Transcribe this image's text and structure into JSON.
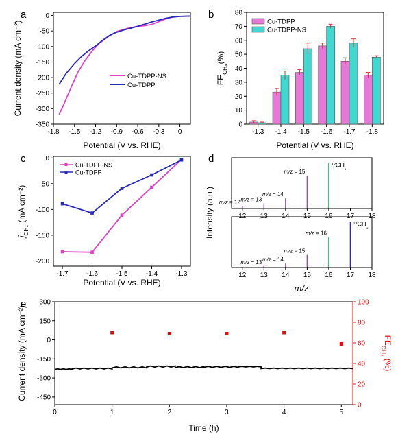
{
  "colors": {
    "magenta": "#e040c8",
    "magenta_fill": "#e878d8",
    "blue": "#2a2ab8",
    "cyan": "#40d8d0",
    "red": "#e01010",
    "green": "#20b070",
    "purple": "#9050c0",
    "errorbar": "#e03030"
  },
  "panel_labels": {
    "a": "a",
    "b": "b",
    "c": "c",
    "d": "d",
    "e": "e"
  },
  "chart_data": [
    {
      "id": "a",
      "type": "line",
      "xlabel": "Potential (V vs. RHE)",
      "ylabel": "Current density (mA cm⁻²)",
      "xlim": [
        -1.8,
        0.15
      ],
      "ylim": [
        -350,
        10
      ],
      "xticks": [
        "-1.8",
        "-1.5",
        "-1.2",
        "-0.9",
        "-0.6",
        "-0.3",
        "0"
      ],
      "yticks": [
        "0",
        "-50",
        "-100",
        "-150",
        "-200",
        "-250",
        "-300",
        "-350"
      ],
      "legend": "center-right",
      "series": [
        {
          "name": "Cu-TDPP-NS",
          "color": "magenta",
          "x": [
            -1.72,
            -1.65,
            -1.55,
            -1.45,
            -1.35,
            -1.25,
            -1.15,
            -1.0,
            -0.9,
            -0.75,
            -0.6,
            -0.5,
            -0.4,
            -0.3,
            -0.2,
            -0.1,
            0.0,
            0.15
          ],
          "y": [
            -320,
            -285,
            -232,
            -182,
            -145,
            -115,
            -90,
            -65,
            -52,
            -42,
            -35,
            -33,
            -29,
            -20,
            -11,
            -5,
            -3,
            -2
          ]
        },
        {
          "name": "Cu-TDPP",
          "color": "blue",
          "x": [
            -1.72,
            -1.62,
            -1.5,
            -1.4,
            -1.3,
            -1.2,
            -1.1,
            -1.0,
            -0.9,
            -0.8,
            -0.7,
            -0.6,
            -0.5,
            -0.4,
            -0.3,
            -0.2,
            -0.1,
            0.0,
            0.15
          ],
          "y": [
            -222,
            -187,
            -155,
            -132,
            -114,
            -98,
            -80,
            -64,
            -54,
            -47,
            -41,
            -35,
            -28,
            -21,
            -15,
            -9,
            -5,
            -3,
            -2
          ]
        }
      ]
    },
    {
      "id": "b",
      "type": "bar",
      "xlabel": "Potential (V vs. RHE)",
      "ylabel": "FE",
      "ylabel_sub": "CH₄",
      "ylabel_suffix": "(%)",
      "ylim": [
        0,
        80
      ],
      "yticks": [
        "0",
        "10",
        "20",
        "30",
        "40",
        "50",
        "60",
        "70",
        "80"
      ],
      "categories": [
        "-1.3",
        "-1.4",
        "-1.5",
        "-1.6",
        "-1.7",
        "-1.8"
      ],
      "legend": "top-left",
      "series": [
        {
          "name": "Cu-TDPP",
          "color": "magenta_fill",
          "values": [
            1.5,
            23,
            37,
            56,
            45,
            35
          ],
          "errors": [
            1,
            2.5,
            2,
            2,
            2.5,
            2
          ]
        },
        {
          "name": "Cu-TDPP-NS",
          "color": "cyan",
          "values": [
            1,
            35,
            54,
            70,
            58,
            48
          ],
          "errors": [
            0.5,
            3,
            4,
            1.5,
            3,
            1
          ]
        }
      ]
    },
    {
      "id": "c",
      "type": "line",
      "xlabel": "Potential (V vs. RHE)",
      "ylabel_prefix": "j",
      "ylabel_sub": "CH₄",
      "ylabel_suffix": "(mA cm⁻²)",
      "xlim": [
        -1.7,
        -1.3
      ],
      "ylim": [
        -200,
        0
      ],
      "xticks": [
        "-1.7",
        "-1.6",
        "-1.5",
        "-1.4",
        "-1.3"
      ],
      "yticks": [
        "0",
        "-50",
        "-100",
        "-150",
        "-200"
      ],
      "legend": "top-left",
      "series": [
        {
          "name": "Cu-TDPP-NS",
          "color": "magenta",
          "x": [
            -1.7,
            -1.6,
            -1.5,
            -1.4,
            -1.3
          ],
          "y": [
            -182,
            -183,
            -111,
            -57,
            -3
          ]
        },
        {
          "name": "Cu-TDPP",
          "color": "blue",
          "x": [
            -1.7,
            -1.6,
            -1.5,
            -1.4,
            -1.3
          ],
          "y": [
            -89,
            -107,
            -59,
            -33,
            -4
          ]
        }
      ]
    },
    {
      "id": "d",
      "type": "bar",
      "ylabel": "Intensity (a.u.)",
      "xlabel": "m/z",
      "xlim": [
        11.5,
        18
      ],
      "xticks": [
        "12",
        "13",
        "14",
        "15",
        "16",
        "17",
        "18"
      ],
      "panels": [
        {
          "species": "¹²CH₄",
          "peaks": [
            {
              "mz": 12,
              "height": 0.05,
              "label": "m/z = 12",
              "color": "purple"
            },
            {
              "mz": 13,
              "height": 0.1,
              "label": "m/z = 13",
              "color": "purple"
            },
            {
              "mz": 14,
              "height": 0.2,
              "label": "m/z = 14",
              "color": "purple"
            },
            {
              "mz": 15,
              "height": 0.65,
              "label": "m/z = 15",
              "color": "purple"
            },
            {
              "mz": 16,
              "height": 0.9,
              "label": "",
              "color": "green"
            }
          ]
        },
        {
          "species": "¹³CH₄",
          "peaks": [
            {
              "mz": 13,
              "height": 0.03,
              "label": "m/z = 13",
              "color": "purple"
            },
            {
              "mz": 14,
              "height": 0.08,
              "label": "m/z = 14",
              "color": "purple"
            },
            {
              "mz": 15,
              "height": 0.25,
              "label": "m/z = 15",
              "color": "purple"
            },
            {
              "mz": 16,
              "height": 0.6,
              "label": "m/z = 16",
              "color": "green"
            },
            {
              "mz": 17,
              "height": 0.9,
              "label": "",
              "color": "blue"
            }
          ]
        }
      ]
    },
    {
      "id": "e",
      "type": "scatter",
      "xlabel": "Time (h)",
      "ylabel": "Current density (mA cm⁻²)",
      "ylabel_right": "FE",
      "ylabel_right_sub": "CH₄",
      "ylabel_right_suffix": "(%)",
      "xlim": [
        0,
        5.2
      ],
      "ylim": [
        -500,
        300
      ],
      "ylim_right": [
        0,
        100
      ],
      "xticks": [
        "0",
        "1",
        "2",
        "3",
        "4",
        "5"
      ],
      "yticks": [
        "300",
        "150",
        "0",
        "-150",
        "-300",
        "-450"
      ],
      "yticks_right": [
        "100",
        "80",
        "60",
        "40",
        "20",
        "0"
      ],
      "current": {
        "color": "black",
        "baseline": -225
      },
      "fe": {
        "color": "red",
        "x": [
          1,
          2,
          3,
          4,
          5
        ],
        "y": [
          70,
          69,
          69,
          70,
          59
        ]
      }
    }
  ]
}
